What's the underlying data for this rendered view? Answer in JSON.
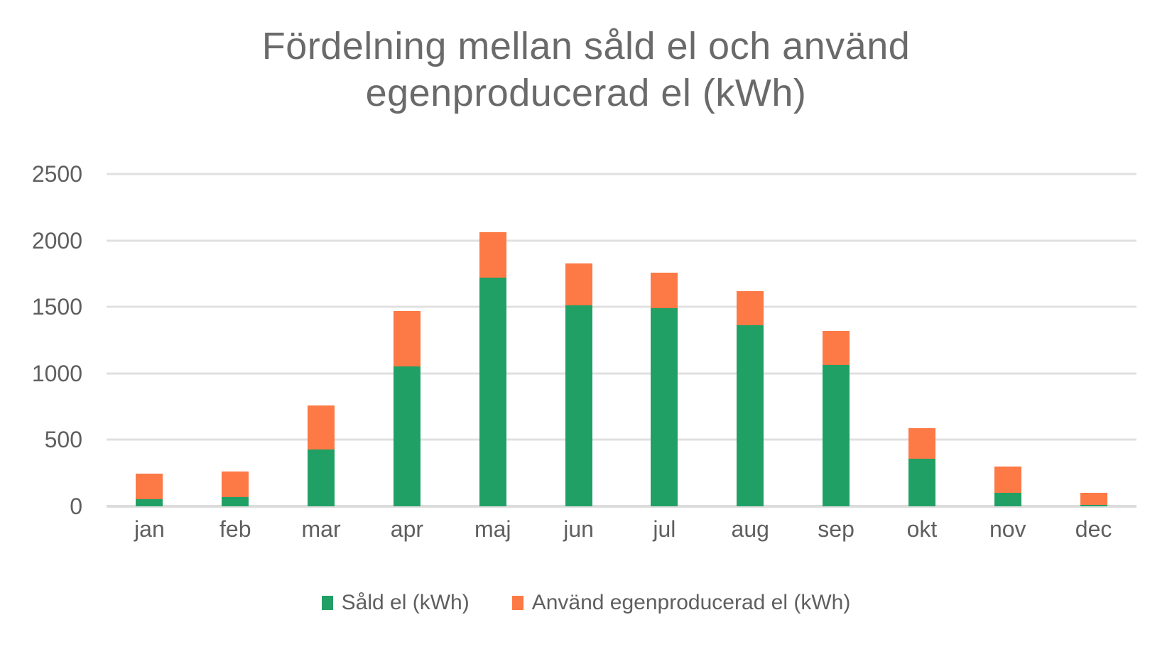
{
  "chart_data": {
    "type": "bar",
    "stacked": true,
    "title": "Fördelning mellan såld el och använd egenproducerad el (kWh)",
    "title_lines": [
      "Fördelning mellan såld el och använd",
      "egenproducerad el (kWh)"
    ],
    "categories": [
      "jan",
      "feb",
      "mar",
      "apr",
      "maj",
      "jun",
      "jul",
      "aug",
      "sep",
      "okt",
      "nov",
      "dec"
    ],
    "series": [
      {
        "name": "Såld el (kWh)",
        "color": "#21A065",
        "values": [
          55,
          70,
          425,
          1055,
          1720,
          1510,
          1490,
          1360,
          1065,
          360,
          100,
          10
        ]
      },
      {
        "name": "Använd egenproducerad el (kWh)",
        "color": "#FD7946",
        "values": [
          190,
          190,
          335,
          415,
          340,
          315,
          270,
          260,
          255,
          230,
          200,
          90
        ]
      }
    ],
    "totals": [
      245,
      260,
      760,
      1470,
      2060,
      1825,
      1760,
      1620,
      1320,
      590,
      300,
      100
    ],
    "xlabel": "",
    "ylabel": "",
    "ylim": [
      0,
      2500
    ],
    "yticks": [
      0,
      500,
      1000,
      1500,
      2000,
      2500
    ],
    "grid": true,
    "legend_position": "bottom",
    "colors": {
      "grid": "#E0E0E0",
      "baseline": "#DCDCDC",
      "axis_text": "#5F5F5F",
      "title_text": "#6A6A6A",
      "background": "#FFFFFF"
    }
  }
}
